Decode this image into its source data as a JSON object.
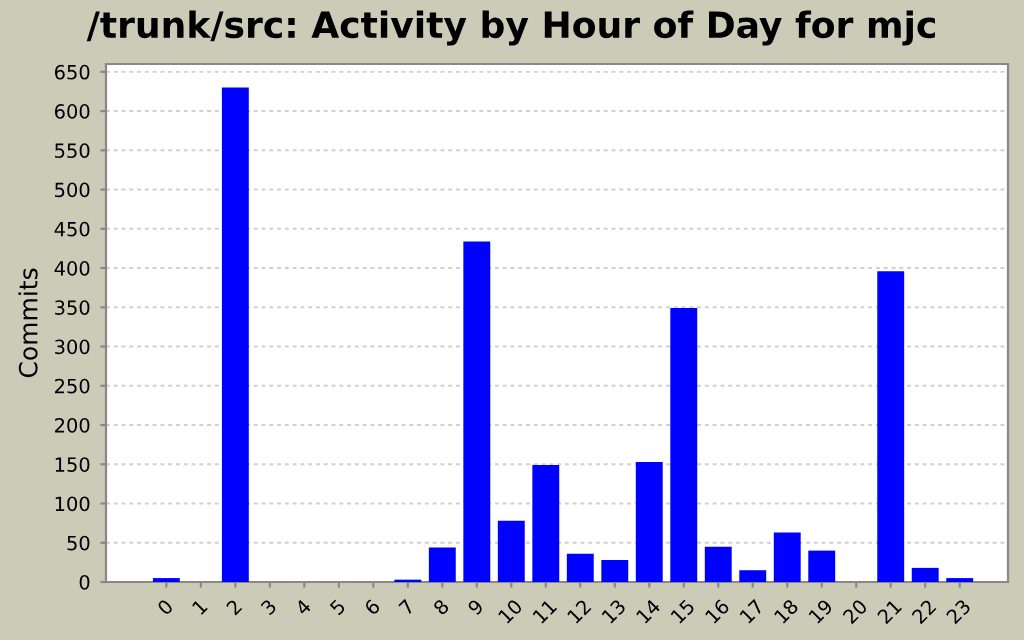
{
  "chart_data": {
    "type": "bar",
    "title": "/trunk/src: Activity by Hour of Day for mjc",
    "ylabel": "Commits",
    "categories": [
      "0",
      "1",
      "2",
      "3",
      "4",
      "5",
      "6",
      "7",
      "8",
      "9",
      "10",
      "11",
      "12",
      "13",
      "14",
      "15",
      "16",
      "17",
      "18",
      "19",
      "20",
      "21",
      "22",
      "23"
    ],
    "values": [
      5,
      0,
      630,
      0,
      0,
      0,
      0,
      3,
      44,
      434,
      78,
      149,
      36,
      28,
      153,
      349,
      45,
      15,
      63,
      40,
      0,
      396,
      18,
      5
    ],
    "color": "#0000ff",
    "ylim": [
      0,
      660
    ],
    "yticks": [
      0,
      50,
      100,
      150,
      200,
      250,
      300,
      350,
      400,
      450,
      500,
      550,
      600,
      650
    ],
    "grid": "y",
    "legend": false
  }
}
